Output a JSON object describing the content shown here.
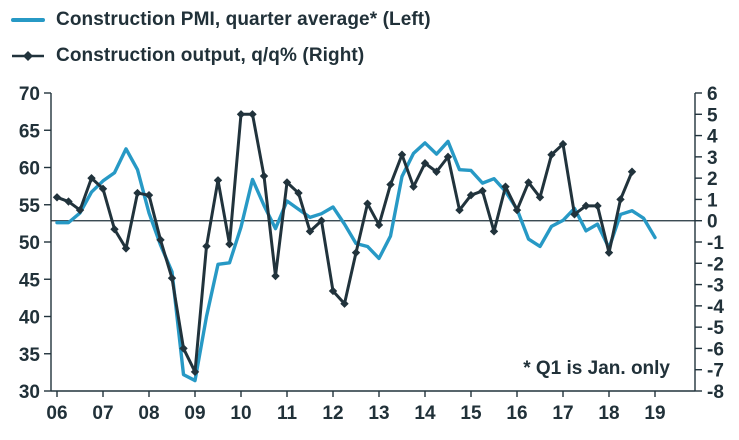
{
  "accent_colors": {
    "pmi_blue": "#2799c5",
    "output_dark": "#21333c",
    "text": "#213139",
    "axis": "#21333c"
  },
  "legend": {
    "items": [
      {
        "label": "Construction PMI, quarter average* (Left)",
        "color": "#2799c5",
        "marker": "line"
      },
      {
        "label": "Construction output, q/q% (Right)",
        "color": "#21333c",
        "marker": "line-diamond"
      }
    ]
  },
  "annotation": "* Q1 is Jan. only",
  "chart_data": {
    "type": "line",
    "title": "",
    "xlabel": "",
    "ylabel_left": "",
    "ylabel_right": "",
    "x_tick_labels": [
      "06",
      "07",
      "08",
      "09",
      "10",
      "11",
      "12",
      "13",
      "14",
      "15",
      "16",
      "17",
      "18",
      "19"
    ],
    "left_axis": {
      "min": 30,
      "max": 70,
      "ticks": [
        70,
        65,
        60,
        55,
        50,
        45,
        40,
        35,
        30
      ]
    },
    "right_axis": {
      "min": -8,
      "max": 6,
      "ticks": [
        6,
        5,
        4,
        3,
        2,
        1,
        0,
        -1,
        -2,
        -3,
        -4,
        -5,
        -6,
        -7,
        -8
      ]
    },
    "zero_line_right_value": 0,
    "grid": false,
    "legend_position": "top-left",
    "series": [
      {
        "name": "Construction PMI, quarter average* (Left)",
        "axis": "left",
        "color": "#2799c5",
        "marker": "none",
        "x_start_year": 2006,
        "x_step_years": 0.25,
        "values": [
          52.6,
          52.6,
          53.9,
          56.7,
          58.2,
          59.3,
          62.5,
          59.7,
          53.9,
          49.6,
          46.0,
          32.2,
          31.4,
          40.0,
          47.0,
          47.2,
          52.0,
          58.4,
          54.9,
          51.8,
          55.5,
          54.4,
          53.3,
          53.8,
          54.7,
          52.4,
          49.8,
          49.4,
          47.8,
          50.8,
          58.8,
          61.9,
          63.3,
          61.8,
          63.5,
          59.7,
          59.6,
          57.9,
          58.5,
          56.8,
          54.4,
          50.4,
          49.4,
          52.1,
          52.9,
          54.5,
          51.5,
          52.4,
          49.2,
          53.7,
          54.2,
          53.2,
          50.6
        ]
      },
      {
        "name": "Construction output, q/q% (Right)",
        "axis": "right",
        "color": "#21333c",
        "marker": "diamond",
        "x_start_year": 2006,
        "x_step_years": 0.25,
        "values": [
          1.1,
          0.9,
          0.5,
          2.0,
          1.5,
          -0.4,
          -1.3,
          1.3,
          1.2,
          -0.9,
          -2.7,
          -6.0,
          -7.1,
          -1.2,
          1.9,
          -1.1,
          5.0,
          5.0,
          2.1,
          -2.6,
          1.8,
          1.3,
          -0.5,
          0.0,
          -3.3,
          -3.9,
          -1.5,
          0.8,
          -0.2,
          1.7,
          3.1,
          1.6,
          2.7,
          2.3,
          3.0,
          0.5,
          1.2,
          1.4,
          -0.5,
          1.6,
          0.5,
          1.8,
          1.1,
          3.1,
          3.6,
          0.3,
          0.7,
          0.7,
          -1.5,
          1.0,
          2.3
        ]
      }
    ]
  }
}
